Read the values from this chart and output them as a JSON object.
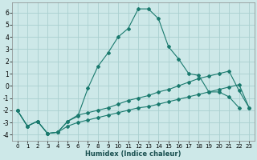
{
  "xlabel": "Humidex (Indice chaleur)",
  "background_color": "#cde8e8",
  "grid_color": "#aacfcf",
  "line_color": "#1a7a6e",
  "xlim": [
    -0.5,
    23.5
  ],
  "ylim": [
    -4.5,
    6.8
  ],
  "xticks": [
    0,
    1,
    2,
    3,
    4,
    5,
    6,
    7,
    8,
    9,
    10,
    11,
    12,
    13,
    14,
    15,
    16,
    17,
    18,
    19,
    20,
    21,
    22,
    23
  ],
  "yticks": [
    -4,
    -3,
    -2,
    -1,
    0,
    1,
    2,
    3,
    4,
    5,
    6
  ],
  "series_peak_x": [
    0,
    1,
    2,
    3,
    4,
    5,
    6,
    7,
    8,
    9,
    10,
    11,
    12,
    13,
    14,
    15,
    16,
    17,
    18,
    19,
    20,
    21,
    22,
    23
  ],
  "series_peak_y": [
    -2.0,
    -3.3,
    -2.9,
    -3.9,
    -3.8,
    -2.9,
    -2.5,
    -0.2,
    1.6,
    2.7,
    4.0,
    4.7,
    6.3,
    6.3,
    5.5,
    3.2,
    2.2,
    1.0,
    0.85,
    -0.5,
    -0.5,
    -0.9,
    -1.8,
    null
  ],
  "series_mid_x": [
    0,
    1,
    2,
    3,
    4,
    5,
    6,
    7,
    8,
    9,
    10,
    11,
    12,
    13,
    14,
    15,
    16,
    17,
    18,
    19,
    20,
    21,
    22,
    23
  ],
  "series_mid_y": [
    -2.0,
    -3.3,
    -2.9,
    -3.9,
    -3.8,
    -2.9,
    -2.4,
    -2.2,
    -2.0,
    -1.8,
    -1.5,
    -1.2,
    -1.0,
    -0.8,
    -0.5,
    -0.3,
    0.0,
    0.3,
    0.6,
    0.8,
    1.0,
    1.2,
    -0.4,
    -1.8
  ],
  "series_low_x": [
    0,
    1,
    2,
    3,
    4,
    5,
    6,
    7,
    8,
    9,
    10,
    11,
    12,
    13,
    14,
    15,
    16,
    17,
    18,
    19,
    20,
    21,
    22,
    23
  ],
  "series_low_y": [
    -2.0,
    -3.3,
    -2.9,
    -3.9,
    -3.8,
    -3.3,
    -3.0,
    -2.8,
    -2.6,
    -2.4,
    -2.2,
    -2.0,
    -1.8,
    -1.7,
    -1.5,
    -1.3,
    -1.1,
    -0.9,
    -0.7,
    -0.5,
    -0.3,
    -0.1,
    0.1,
    -1.8
  ]
}
